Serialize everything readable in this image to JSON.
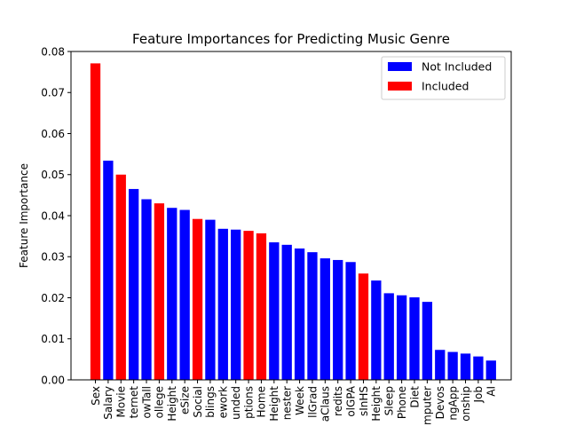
{
  "chart_data": {
    "type": "bar",
    "title": "Feature Importances for Predicting Music Genre",
    "xlabel": "",
    "ylabel": "Feature Importance",
    "ylim": [
      0,
      0.08
    ],
    "yticks": [
      "0.00",
      "0.01",
      "0.02",
      "0.03",
      "0.04",
      "0.05",
      "0.06",
      "0.07",
      "0.08"
    ],
    "grid": false,
    "legend_position": "top-right",
    "colors": {
      "Not Included": "#0000ff",
      "Included": "#ff0000"
    },
    "legend": [
      {
        "label": "Not Included",
        "color": "#0000ff"
      },
      {
        "label": "Included",
        "color": "#ff0000"
      }
    ],
    "categories": [
      "Sex",
      "Salary",
      "Movie",
      "ternet",
      "owTall",
      "ollege",
      "Height",
      "eSize",
      "Social",
      "blings",
      "ework",
      "unded",
      "ptions",
      "Home",
      "Height",
      "nester",
      "Week",
      "llGrad",
      "aClaus",
      "redits",
      "olGPA",
      "sInHS",
      "Height",
      "Sleep",
      "Phone",
      "Diet",
      "mputer",
      "Devos",
      "ngApp",
      "onship",
      "Job",
      "AI"
    ],
    "values": [
      0.0771,
      0.0534,
      0.05,
      0.0465,
      0.044,
      0.043,
      0.0419,
      0.0414,
      0.0392,
      0.039,
      0.0368,
      0.0366,
      0.0363,
      0.0357,
      0.0335,
      0.0329,
      0.032,
      0.0311,
      0.0296,
      0.0292,
      0.0287,
      0.0259,
      0.0242,
      0.0211,
      0.0206,
      0.0201,
      0.019,
      0.0073,
      0.0068,
      0.0064,
      0.0057,
      0.0047
    ],
    "groups": [
      "Included",
      "Not Included",
      "Included",
      "Not Included",
      "Not Included",
      "Included",
      "Not Included",
      "Not Included",
      "Included",
      "Not Included",
      "Not Included",
      "Not Included",
      "Included",
      "Included",
      "Not Included",
      "Not Included",
      "Not Included",
      "Not Included",
      "Not Included",
      "Not Included",
      "Not Included",
      "Included",
      "Not Included",
      "Not Included",
      "Not Included",
      "Not Included",
      "Not Included",
      "Not Included",
      "Not Included",
      "Not Included",
      "Not Included",
      "Not Included"
    ]
  }
}
